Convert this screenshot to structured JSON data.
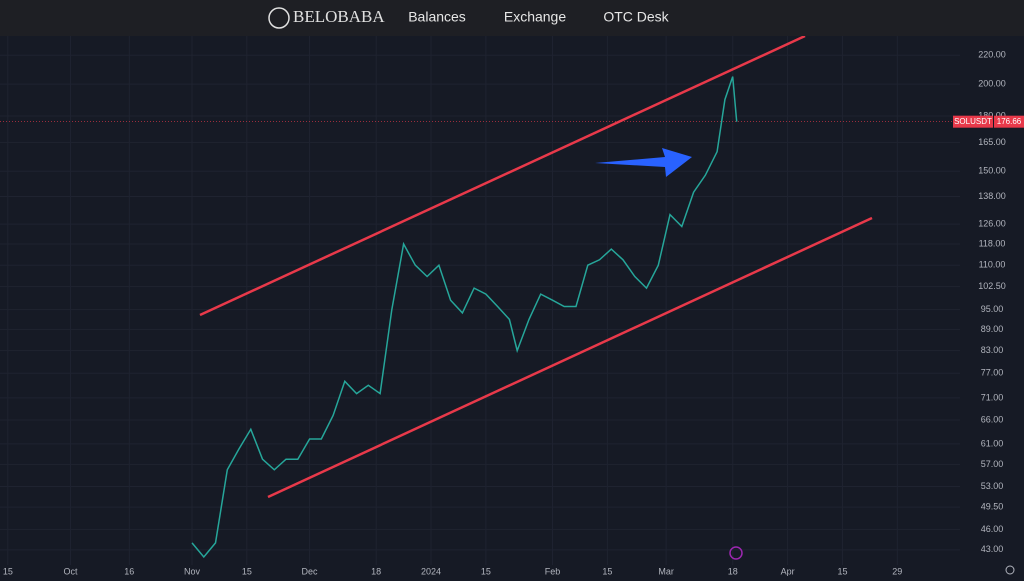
{
  "header": {
    "logo": "BELOBABA",
    "nav": [
      "Balances",
      "Exchange",
      "OTC Desk"
    ]
  },
  "chart_data": {
    "type": "line",
    "log_scale": true,
    "grid": true,
    "x": [
      "2023-11-01",
      "2023-11-04",
      "2023-11-07",
      "2023-11-10",
      "2023-11-13",
      "2023-11-16",
      "2023-11-19",
      "2023-11-22",
      "2023-11-25",
      "2023-11-28",
      "2023-12-01",
      "2023-12-04",
      "2023-12-07",
      "2023-12-10",
      "2023-12-13",
      "2023-12-16",
      "2023-12-19",
      "2023-12-22",
      "2023-12-25",
      "2023-12-28",
      "2023-12-31",
      "2024-01-03",
      "2024-01-06",
      "2024-01-09",
      "2024-01-12",
      "2024-01-15",
      "2024-01-18",
      "2024-01-21",
      "2024-01-23",
      "2024-01-26",
      "2024-01-29",
      "2024-02-01",
      "2024-02-04",
      "2024-02-07",
      "2024-02-10",
      "2024-02-13",
      "2024-02-16",
      "2024-02-19",
      "2024-02-22",
      "2024-02-25",
      "2024-02-28",
      "2024-03-02",
      "2024-03-05",
      "2024-03-08",
      "2024-03-11",
      "2024-03-14",
      "2024-03-16",
      "2024-03-18",
      "2024-03-19"
    ],
    "series": [
      {
        "name": "SOLUSDT",
        "color": "#26a69a",
        "values": [
          44,
          42,
          44,
          56,
          60,
          64,
          58,
          56,
          58,
          58,
          62,
          62,
          67,
          75,
          72,
          74,
          72,
          95,
          118,
          110,
          106,
          110,
          98,
          94,
          102,
          100,
          96,
          92,
          83,
          92,
          100,
          98,
          96,
          96,
          110,
          112,
          116,
          112,
          106,
          102,
          110,
          130,
          125,
          140,
          148,
          160,
          190,
          205,
          176.66
        ]
      }
    ],
    "last_price": {
      "symbol": "SOLUSDT",
      "value": 176.66
    },
    "xlim": [
      "2023-09-13",
      "2024-05-15"
    ],
    "xticks": [
      {
        "value": "2023-09-15",
        "label": "15"
      },
      {
        "value": "2023-10-01",
        "label": "Oct"
      },
      {
        "value": "2023-10-16",
        "label": "16"
      },
      {
        "value": "2023-11-01",
        "label": "Nov"
      },
      {
        "value": "2023-11-15",
        "label": "15"
      },
      {
        "value": "2023-12-01",
        "label": "Dec"
      },
      {
        "value": "2023-12-18",
        "label": "18"
      },
      {
        "value": "2024-01-01",
        "label": "2024"
      },
      {
        "value": "2024-01-15",
        "label": "15"
      },
      {
        "value": "2024-02-01",
        "label": "Feb"
      },
      {
        "value": "2024-02-15",
        "label": "15"
      },
      {
        "value": "2024-03-01",
        "label": "Mar"
      },
      {
        "value": "2024-03-18",
        "label": "18"
      },
      {
        "value": "2024-04-01",
        "label": "Apr"
      },
      {
        "value": "2024-04-15",
        "label": "15"
      },
      {
        "value": "2024-04-29",
        "label": "29"
      }
    ],
    "ylim": [
      40.9,
      234.4
    ],
    "yticks": [
      {
        "value": 220,
        "label": "220.00"
      },
      {
        "value": 200,
        "label": "200.00"
      },
      {
        "value": 180,
        "label": "180.00"
      },
      {
        "value": 165,
        "label": "165.00"
      },
      {
        "value": 150,
        "label": "150.00"
      },
      {
        "value": 138,
        "label": "138.00"
      },
      {
        "value": 126,
        "label": "126.00"
      },
      {
        "value": 118,
        "label": "118.00"
      },
      {
        "value": 110,
        "label": "110.00"
      },
      {
        "value": 102.5,
        "label": "102.50"
      },
      {
        "value": 95,
        "label": "95.00"
      },
      {
        "value": 89,
        "label": "89.00"
      },
      {
        "value": 83,
        "label": "83.00"
      },
      {
        "value": 77,
        "label": "77.00"
      },
      {
        "value": 71,
        "label": "71.00"
      },
      {
        "value": 66,
        "label": "66.00"
      },
      {
        "value": 61,
        "label": "61.00"
      },
      {
        "value": 57,
        "label": "57.00"
      },
      {
        "value": 53,
        "label": "53.00"
      },
      {
        "value": 49.5,
        "label": "49.50"
      },
      {
        "value": 46,
        "label": "46.00"
      },
      {
        "value": 43,
        "label": "43.00"
      }
    ]
  }
}
